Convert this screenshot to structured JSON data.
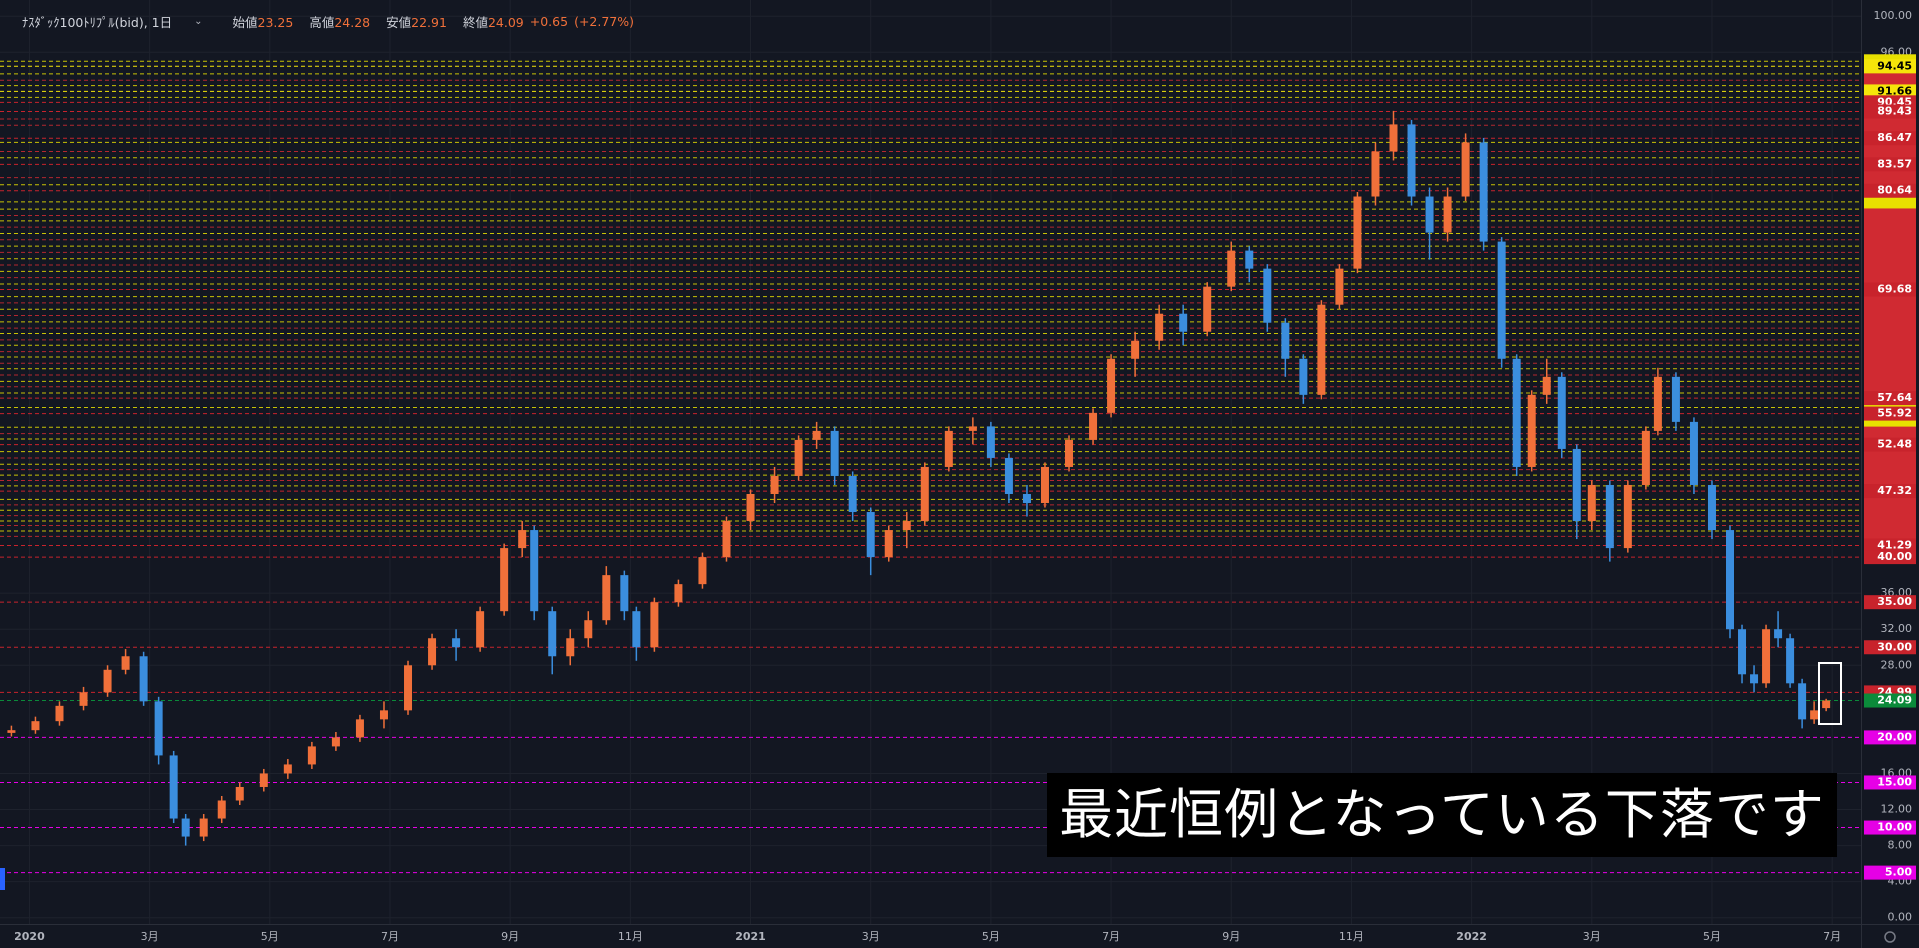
{
  "header": {
    "symbol": "ﾅｽﾀﾞｯｸ100ﾄﾘﾌﾟﾙ(bid), 1日",
    "ohlc": [
      {
        "label": "始値",
        "value": 23.25
      },
      {
        "label": "高値",
        "value": 24.28
      },
      {
        "label": "安値",
        "value": 22.91
      },
      {
        "label": "終値",
        "value": 24.09
      }
    ],
    "change": {
      "value": 0.65,
      "label": "+0.65"
    },
    "change_pct": {
      "value": 2.77,
      "label": "(+2.77%)"
    }
  },
  "chart_data": {
    "type": "candlestick",
    "x": [
      -0.3,
      0.1,
      0.5,
      0.9,
      1.3,
      1.6,
      1.9,
      2.15,
      2.4,
      2.6,
      2.9,
      3.2,
      3.5,
      3.9,
      4.3,
      4.7,
      5.1,
      5.5,
      5.9,
      6.3,
      6.7,
      7.1,
      7.5,
      7.9,
      8.2,
      8.4,
      8.7,
      9.0,
      9.3,
      9.6,
      9.9,
      10.1,
      10.4,
      10.8,
      11.2,
      11.6,
      12.0,
      12.4,
      12.8,
      13.1,
      13.4,
      13.7,
      14.0,
      14.3,
      14.6,
      14.9,
      15.3,
      15.7,
      16.0,
      16.3,
      16.6,
      16.9,
      17.3,
      17.7,
      18.0,
      18.4,
      18.8,
      19.2,
      19.6,
      20.0,
      20.3,
      20.6,
      20.9,
      21.2,
      21.5,
      21.8,
      22.1,
      22.4,
      22.7,
      23.0,
      23.3,
      23.6,
      23.9,
      24.2,
      24.5,
      24.75,
      25.0,
      25.25,
      25.5,
      25.75,
      26.0,
      26.3,
      26.6,
      26.9,
      27.1,
      27.4,
      27.7,
      28.0,
      28.3,
      28.5,
      28.7,
      28.9,
      29.1,
      29.3,
      29.5,
      29.7,
      29.9
    ],
    "open": [
      20.5,
      20.8,
      21.8,
      23.5,
      25,
      27.5,
      29,
      24,
      18,
      11,
      9,
      11,
      13,
      14.5,
      16,
      17,
      19,
      20,
      22,
      23,
      28,
      31,
      30,
      34,
      41,
      43,
      34,
      29,
      31,
      33,
      38,
      34,
      30,
      35,
      37,
      40,
      44,
      47,
      49,
      53,
      54,
      49,
      45,
      40,
      43,
      44,
      50,
      54,
      54.5,
      51,
      47,
      46,
      50,
      53,
      56,
      62,
      64,
      67,
      65,
      70,
      74,
      72,
      66,
      62,
      58,
      68,
      72,
      80,
      85,
      88,
      80,
      76,
      80,
      86,
      75,
      62,
      50,
      58,
      60,
      52,
      44,
      48,
      41,
      48,
      54,
      60,
      55,
      48,
      43,
      32,
      27,
      26,
      32,
      31,
      26,
      22,
      23.25
    ],
    "high": [
      21.3,
      22.3,
      24,
      25.6,
      28,
      29.8,
      29.5,
      24.5,
      18.5,
      11.5,
      11.5,
      13.5,
      15,
      16.5,
      17.6,
      19.5,
      20.6,
      22.5,
      24,
      28.5,
      31.5,
      32,
      34.5,
      41.5,
      44,
      43.5,
      34.5,
      32,
      34,
      39,
      38.5,
      34.5,
      35.5,
      37.5,
      40.5,
      44.5,
      47.5,
      50,
      53.5,
      55,
      54.5,
      49.5,
      45.5,
      43.5,
      45,
      50.5,
      54.5,
      55.5,
      55,
      51.5,
      48,
      50.5,
      53.5,
      56.5,
      62.5,
      65,
      68,
      68,
      70.5,
      75,
      74.5,
      72.5,
      66.5,
      62.5,
      68.5,
      72.5,
      80.5,
      86,
      89.5,
      88.5,
      81,
      81,
      87,
      86.5,
      75.5,
      62.5,
      58.5,
      62,
      60.5,
      52.5,
      48.5,
      48.5,
      48.5,
      54.5,
      61,
      60.5,
      55.5,
      48.5,
      43.5,
      32.5,
      28,
      32.5,
      34,
      31.5,
      26.5,
      24,
      24.28
    ],
    "low": [
      20.1,
      20.4,
      21.3,
      23,
      24.5,
      27,
      23.5,
      17,
      10.5,
      8,
      8.5,
      10.5,
      12.5,
      14,
      15.4,
      16.5,
      18.5,
      19.5,
      21,
      22.5,
      27.5,
      28.5,
      29.5,
      33.5,
      40,
      33,
      27,
      28,
      30,
      32.5,
      33,
      28.5,
      29.5,
      34.5,
      36.5,
      39.5,
      43,
      46,
      48.5,
      52,
      48,
      44,
      38,
      39.5,
      41,
      43.5,
      49.5,
      52.5,
      50,
      46,
      44.5,
      45.5,
      49.5,
      52.5,
      55.5,
      60,
      63,
      63.5,
      64.5,
      69.5,
      70.5,
      65,
      60,
      57,
      57.5,
      67.5,
      71.5,
      79,
      84,
      79,
      73,
      75,
      79.5,
      74,
      61,
      49,
      49.5,
      57,
      51,
      42,
      43,
      39.5,
      40.5,
      47.5,
      53.5,
      54,
      47,
      42,
      31,
      26,
      25,
      25.5,
      30,
      25.5,
      21,
      21.5,
      22.91
    ],
    "close": [
      20.8,
      21.8,
      23.5,
      25,
      27.5,
      29,
      24,
      18,
      11,
      9,
      11,
      13,
      14.5,
      16,
      17,
      19,
      20,
      22,
      23,
      28,
      31,
      30,
      34,
      41,
      43,
      34,
      29,
      31,
      33,
      38,
      34,
      30,
      35,
      37,
      40,
      44,
      47,
      49,
      53,
      54,
      49,
      45,
      40,
      43,
      44,
      50,
      54,
      54.5,
      51,
      47,
      46,
      50,
      53,
      56,
      62,
      64,
      67,
      65,
      70,
      74,
      72,
      66,
      62,
      58,
      68,
      72,
      80,
      85,
      88,
      80,
      76,
      80,
      86,
      75,
      62,
      50,
      58,
      60,
      52,
      44,
      48,
      41,
      48,
      54,
      60,
      55,
      48,
      43,
      32,
      27,
      26,
      32,
      31,
      26,
      22,
      23,
      24.09
    ],
    "up_color": "#f0703a",
    "down_color": "#3b8ede",
    "xlim": [
      -0.49,
      30.48
    ],
    "xticks": [
      {
        "value": 0,
        "label": "2020"
      },
      {
        "value": 2,
        "label": "3月"
      },
      {
        "value": 4,
        "label": "5月"
      },
      {
        "value": 6,
        "label": "7月"
      },
      {
        "value": 8,
        "label": "9月"
      },
      {
        "value": 10,
        "label": "11月"
      },
      {
        "value": 12,
        "label": "2021"
      },
      {
        "value": 14,
        "label": "3月"
      },
      {
        "value": 16,
        "label": "5月"
      },
      {
        "value": 18,
        "label": "7月"
      },
      {
        "value": 20,
        "label": "9月"
      },
      {
        "value": 22,
        "label": "11月"
      },
      {
        "value": 24,
        "label": "2022"
      },
      {
        "value": 26,
        "label": "3月"
      },
      {
        "value": 28,
        "label": "5月"
      },
      {
        "value": 30,
        "label": "7月"
      }
    ],
    "ylim": [
      -0.7,
      101.8
    ],
    "yticks": [
      {
        "value": 100,
        "label": "100.00"
      },
      {
        "value": 96,
        "label": "96.00"
      },
      {
        "value": 36,
        "label": "36.00"
      },
      {
        "value": 32,
        "label": "32.00"
      },
      {
        "value": 28,
        "label": "28.00"
      },
      {
        "value": 16,
        "label": "16.00"
      },
      {
        "value": 12,
        "label": "12.00"
      },
      {
        "value": 8,
        "label": "8.00"
      },
      {
        "value": 4,
        "label": "4.00"
      },
      {
        "value": 0,
        "label": "0.00"
      }
    ],
    "grid": true,
    "level_lines": [
      {
        "color": "#e8e000",
        "values": [
          42.9,
          44.0,
          45.2,
          46.4,
          47.9,
          49.1,
          50.3,
          51.7,
          53.1,
          54.4,
          56.6,
          58.2,
          59.5,
          60.9,
          62.2,
          63.5,
          64.8,
          66.1,
          67.5,
          68.9,
          70.3,
          71.7,
          73.1,
          74.5,
          75.9,
          77.3,
          78.6,
          79.4,
          81.3,
          84.3,
          86.0,
          91.0,
          92.3,
          93.6,
          95.0
        ]
      },
      {
        "color": "#d02a32",
        "values": [
          42.3,
          43.5,
          44.6,
          45.8,
          48.5,
          49.7,
          51.0,
          53.7,
          58.9,
          60.2,
          61.5,
          62.8,
          64.1,
          65.4,
          66.8,
          68.2,
          71.0,
          72.4,
          73.8,
          75.2,
          76.6,
          77.9,
          82.1,
          85.0,
          87.9,
          88.6,
          92.9
        ]
      }
    ],
    "level_labels": [
      {
        "value": 94.45,
        "label": "94.45",
        "color": "#f5e50a"
      },
      {
        "value": 91.66,
        "label": "91.66",
        "color": "#f5e50a"
      },
      {
        "value": 90.45,
        "label": "90.45",
        "color": "#c8232c"
      },
      {
        "value": 89.43,
        "label": "89.43",
        "color": "#c8232c"
      },
      {
        "value": 86.47,
        "label": "86.47",
        "color": "#c8232c"
      },
      {
        "value": 83.57,
        "label": "83.57",
        "color": "#c8232c"
      },
      {
        "value": 80.64,
        "label": "80.64",
        "color": "#c8232c"
      },
      {
        "value": 69.68,
        "label": "69.68",
        "color": "#c8232c"
      },
      {
        "value": 57.64,
        "label": "57.64",
        "color": "#c8232c"
      },
      {
        "value": 55.92,
        "label": "55.92",
        "color": "#c8232c"
      },
      {
        "value": 52.48,
        "label": "52.48",
        "color": "#c8232c"
      },
      {
        "value": 47.32,
        "label": "47.32",
        "color": "#c8232c"
      },
      {
        "value": 41.29,
        "label": "41.29",
        "color": "#c8232c"
      },
      {
        "value": 40,
        "label": "40.00",
        "color": "#c8232c"
      },
      {
        "value": 35,
        "label": "35.00",
        "color": "#c8232c"
      },
      {
        "value": 30,
        "label": "30.00",
        "color": "#c8232c"
      },
      {
        "value": 24.99,
        "label": "24.99",
        "color": "#c8232c"
      },
      {
        "value": 24.09,
        "label": "24.09",
        "color": "#0b8a3a"
      },
      {
        "value": 20,
        "label": "20.00",
        "color": "#e600e6"
      },
      {
        "value": 15,
        "label": "15.00",
        "color": "#e600e6"
      },
      {
        "value": 10,
        "label": "10.00",
        "color": "#e600e6"
      },
      {
        "value": 5,
        "label": "5.00",
        "color": "#e600e6"
      }
    ]
  },
  "annotation": {
    "caption": "最近恒例となっている下落です"
  }
}
